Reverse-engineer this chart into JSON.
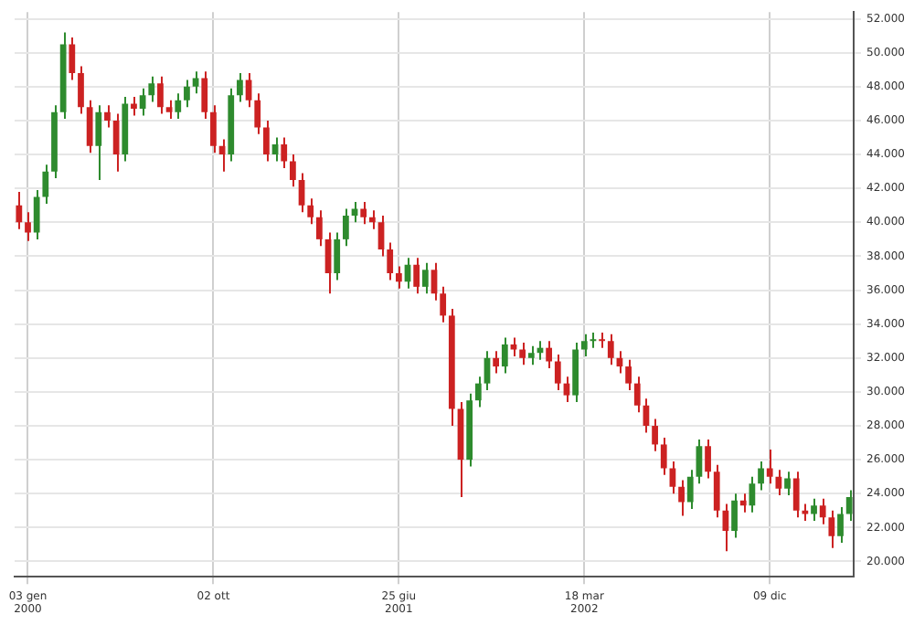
{
  "chart_data": {
    "type": "candlestick",
    "categories": [
      null,
      "03 gen 2000",
      null,
      null,
      null,
      null,
      null,
      null,
      null,
      null,
      null,
      null,
      null,
      null,
      null,
      null,
      null,
      null,
      null,
      null,
      null,
      null,
      "02 ott",
      null,
      null,
      null,
      null,
      null,
      null,
      null,
      null,
      null,
      null,
      null,
      null,
      null,
      null,
      null,
      null,
      null,
      null,
      null,
      null,
      "25 giu 2001",
      null,
      null,
      null,
      null,
      null,
      null,
      null,
      null,
      null,
      null,
      null,
      null,
      null,
      null,
      null,
      null,
      null,
      null,
      null,
      null,
      "18 mar 2002",
      null,
      null,
      null,
      null,
      null,
      null,
      null,
      null,
      null,
      null,
      null,
      null,
      null,
      null,
      null,
      null,
      null,
      null,
      null,
      null,
      "09 dic",
      null,
      null,
      null,
      null,
      null,
      null,
      null,
      null,
      null
    ],
    "ohlc": [
      [
        41.0,
        41.8,
        39.6,
        40.0
      ],
      [
        40.0,
        40.6,
        38.9,
        39.4
      ],
      [
        39.4,
        41.9,
        39.0,
        41.5
      ],
      [
        41.5,
        43.4,
        41.1,
        43.0
      ],
      [
        43.0,
        46.9,
        42.6,
        46.5
      ],
      [
        46.5,
        51.2,
        46.1,
        50.5
      ],
      [
        50.5,
        50.9,
        48.4,
        48.8
      ],
      [
        48.8,
        49.2,
        46.4,
        46.8
      ],
      [
        46.8,
        47.2,
        44.1,
        44.5
      ],
      [
        44.5,
        46.9,
        42.5,
        46.5
      ],
      [
        46.5,
        46.9,
        45.6,
        46.0
      ],
      [
        46.0,
        46.4,
        43.0,
        44.0
      ],
      [
        44.0,
        47.4,
        43.6,
        47.0
      ],
      [
        47.0,
        47.4,
        46.3,
        46.7
      ],
      [
        46.7,
        47.9,
        46.3,
        47.5
      ],
      [
        47.5,
        48.6,
        47.1,
        48.2
      ],
      [
        48.2,
        48.6,
        46.4,
        46.8
      ],
      [
        46.8,
        47.2,
        46.1,
        46.5
      ],
      [
        46.5,
        47.6,
        46.1,
        47.2
      ],
      [
        47.2,
        48.4,
        46.8,
        48.0
      ],
      [
        48.0,
        48.9,
        47.6,
        48.5
      ],
      [
        48.5,
        48.9,
        46.1,
        46.5
      ],
      [
        46.5,
        46.9,
        44.1,
        44.5
      ],
      [
        44.5,
        44.9,
        43.0,
        44.0
      ],
      [
        44.0,
        47.9,
        43.6,
        47.5
      ],
      [
        47.5,
        48.8,
        47.1,
        48.4
      ],
      [
        48.4,
        48.8,
        46.8,
        47.2
      ],
      [
        47.2,
        47.6,
        45.2,
        45.6
      ],
      [
        45.6,
        46.0,
        43.6,
        44.0
      ],
      [
        44.0,
        45.0,
        43.6,
        44.6
      ],
      [
        44.6,
        45.0,
        43.2,
        43.6
      ],
      [
        43.6,
        44.0,
        42.1,
        42.5
      ],
      [
        42.5,
        42.9,
        40.6,
        41.0
      ],
      [
        41.0,
        41.4,
        39.9,
        40.3
      ],
      [
        40.3,
        40.7,
        38.6,
        39.0
      ],
      [
        39.0,
        39.4,
        35.8,
        37.0
      ],
      [
        37.0,
        39.4,
        36.6,
        39.0
      ],
      [
        39.0,
        40.8,
        38.6,
        40.4
      ],
      [
        40.4,
        41.2,
        40.0,
        40.8
      ],
      [
        40.8,
        41.2,
        39.9,
        40.3
      ],
      [
        40.3,
        40.7,
        39.6,
        40.0
      ],
      [
        40.0,
        40.4,
        38.0,
        38.4
      ],
      [
        38.4,
        38.8,
        36.6,
        37.0
      ],
      [
        37.0,
        37.4,
        36.1,
        36.5
      ],
      [
        36.5,
        37.9,
        36.1,
        37.5
      ],
      [
        37.5,
        37.9,
        35.8,
        36.2
      ],
      [
        36.2,
        37.6,
        35.8,
        37.2
      ],
      [
        37.2,
        37.6,
        35.4,
        35.8
      ],
      [
        35.8,
        36.2,
        34.1,
        34.5
      ],
      [
        34.5,
        34.9,
        28.0,
        29.0
      ],
      [
        29.0,
        29.4,
        23.8,
        26.0
      ],
      [
        26.0,
        29.9,
        25.6,
        29.5
      ],
      [
        29.5,
        30.9,
        29.1,
        30.5
      ],
      [
        30.5,
        32.4,
        30.1,
        32.0
      ],
      [
        32.0,
        32.4,
        31.1,
        31.5
      ],
      [
        31.5,
        33.2,
        31.1,
        32.8
      ],
      [
        32.8,
        33.2,
        32.1,
        32.5
      ],
      [
        32.5,
        32.9,
        31.6,
        32.0
      ],
      [
        32.0,
        32.7,
        31.6,
        32.3
      ],
      [
        32.3,
        33.0,
        31.9,
        32.6
      ],
      [
        32.6,
        33.0,
        31.4,
        31.8
      ],
      [
        31.8,
        32.2,
        30.1,
        30.5
      ],
      [
        30.5,
        30.9,
        29.4,
        29.8
      ],
      [
        29.8,
        32.9,
        29.4,
        32.5
      ],
      [
        32.5,
        33.4,
        32.1,
        33.0
      ],
      [
        33.0,
        33.5,
        32.6,
        33.1
      ],
      [
        33.1,
        33.5,
        32.6,
        33.0
      ],
      [
        33.0,
        33.4,
        31.6,
        32.0
      ],
      [
        32.0,
        32.4,
        31.1,
        31.5
      ],
      [
        31.5,
        31.9,
        30.1,
        30.5
      ],
      [
        30.5,
        30.9,
        28.8,
        29.2
      ],
      [
        29.2,
        29.6,
        27.6,
        28.0
      ],
      [
        28.0,
        28.4,
        26.5,
        26.9
      ],
      [
        26.9,
        27.3,
        25.1,
        25.5
      ],
      [
        25.5,
        25.9,
        24.0,
        24.4
      ],
      [
        24.4,
        24.8,
        22.7,
        23.5
      ],
      [
        23.5,
        25.4,
        23.1,
        25.0
      ],
      [
        25.0,
        27.2,
        24.6,
        26.8
      ],
      [
        26.8,
        27.2,
        24.9,
        25.3
      ],
      [
        25.3,
        25.7,
        22.6,
        23.0
      ],
      [
        23.0,
        23.4,
        20.6,
        21.8
      ],
      [
        21.8,
        24.0,
        21.4,
        23.6
      ],
      [
        23.6,
        24.0,
        22.9,
        23.3
      ],
      [
        23.3,
        25.0,
        22.9,
        24.6
      ],
      [
        24.6,
        25.9,
        24.2,
        25.5
      ],
      [
        25.5,
        26.6,
        24.6,
        25.0
      ],
      [
        25.0,
        25.4,
        23.9,
        24.3
      ],
      [
        24.3,
        25.3,
        23.9,
        24.9
      ],
      [
        24.9,
        25.3,
        22.6,
        23.0
      ],
      [
        23.0,
        23.4,
        22.4,
        22.8
      ],
      [
        22.8,
        23.7,
        22.4,
        23.3
      ],
      [
        23.3,
        23.7,
        22.2,
        22.6
      ],
      [
        22.6,
        23.0,
        20.8,
        21.5
      ],
      [
        21.5,
        23.2,
        21.1,
        22.8
      ],
      [
        22.8,
        24.2,
        22.4,
        23.8
      ]
    ],
    "colors": [
      "#cc2222",
      "#cc2222",
      "#2e8b2e",
      "#2e8b2e",
      "#2e8b2e",
      "#2e8b2e",
      "#cc2222",
      "#cc2222",
      "#cc2222",
      "#2e8b2e",
      "#cc2222",
      "#cc2222",
      "#2e8b2e",
      "#cc2222",
      "#2e8b2e",
      "#2e8b2e",
      "#cc2222",
      "#cc2222",
      "#2e8b2e",
      "#2e8b2e",
      "#2e8b2e",
      "#cc2222",
      "#cc2222",
      "#cc2222",
      "#2e8b2e",
      "#2e8b2e",
      "#cc2222",
      "#cc2222",
      "#cc2222",
      "#2e8b2e",
      "#cc2222",
      "#cc2222",
      "#cc2222",
      "#cc2222",
      "#cc2222",
      "#cc2222",
      "#2e8b2e",
      "#2e8b2e",
      "#2e8b2e",
      "#cc2222",
      "#cc2222",
      "#cc2222",
      "#cc2222",
      "#cc2222",
      "#2e8b2e",
      "#cc2222",
      "#2e8b2e",
      "#cc2222",
      "#cc2222",
      "#cc2222",
      "#cc2222",
      "#2e8b2e",
      "#2e8b2e",
      "#2e8b2e",
      "#cc2222",
      "#2e8b2e",
      "#cc2222",
      "#cc2222",
      "#2e8b2e",
      "#2e8b2e",
      "#cc2222",
      "#cc2222",
      "#cc2222",
      "#2e8b2e",
      "#2e8b2e",
      "#2e8b2e",
      "#cc2222",
      "#cc2222",
      "#cc2222",
      "#cc2222",
      "#cc2222",
      "#cc2222",
      "#cc2222",
      "#cc2222",
      "#cc2222",
      "#cc2222",
      "#2e8b2e",
      "#2e8b2e",
      "#cc2222",
      "#cc2222",
      "#cc2222",
      "#2e8b2e",
      "#cc2222",
      "#2e8b2e",
      "#2e8b2e",
      "#cc2222",
      "#cc2222",
      "#2e8b2e",
      "#cc2222",
      "#cc2222",
      "#2e8b2e",
      "#cc2222",
      "#cc2222",
      "#2e8b2e",
      "#2e8b2e"
    ],
    "ylim": [
      19.1,
      52.4
    ],
    "yticks": [
      {
        "value": 20,
        "label": "20.000"
      },
      {
        "value": 22,
        "label": "22.000"
      },
      {
        "value": 24,
        "label": "24.000"
      },
      {
        "value": 26,
        "label": "26.000"
      },
      {
        "value": 28,
        "label": "28.000"
      },
      {
        "value": 30,
        "label": "30.000"
      },
      {
        "value": 32,
        "label": "32.000"
      },
      {
        "value": 34,
        "label": "34.000"
      },
      {
        "value": 36,
        "label": "36.000"
      },
      {
        "value": 38,
        "label": "38.000"
      },
      {
        "value": 40,
        "label": "40.000"
      },
      {
        "value": 42,
        "label": "42.000"
      },
      {
        "value": 44,
        "label": "44.000"
      },
      {
        "value": 46,
        "label": "46.000"
      },
      {
        "value": 48,
        "label": "48.000"
      },
      {
        "value": 50,
        "label": "50.000"
      },
      {
        "value": 52,
        "label": "52.000"
      }
    ],
    "grid": true
  }
}
